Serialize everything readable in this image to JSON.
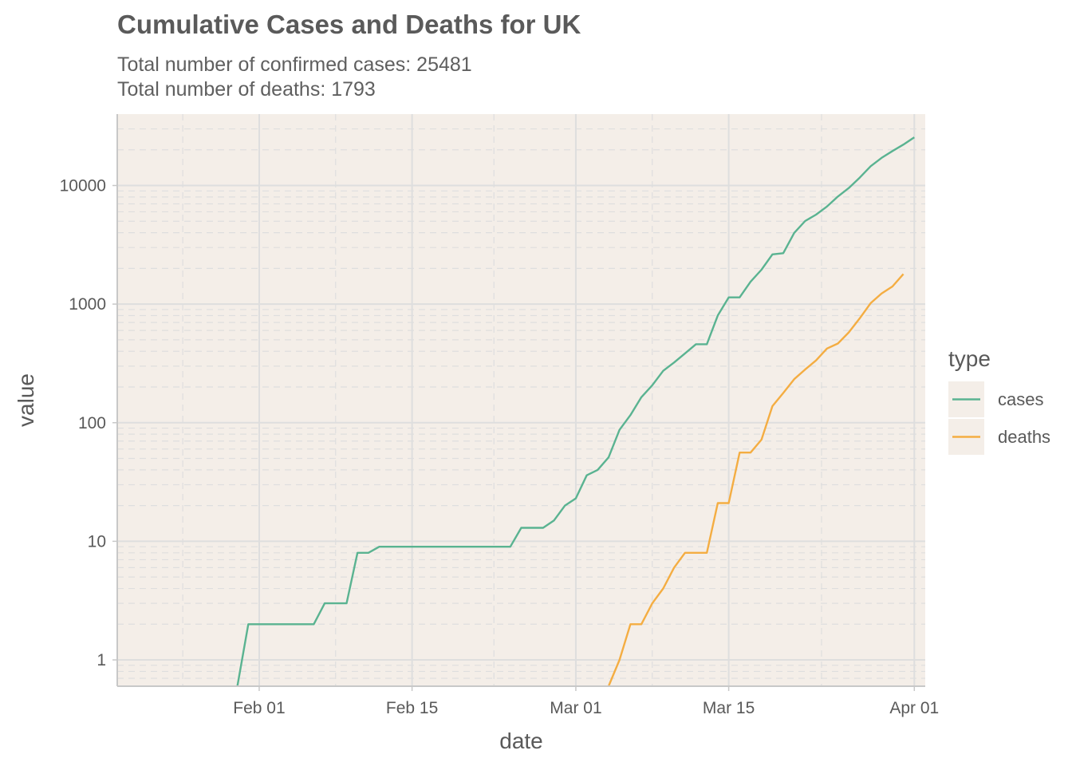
{
  "chart_data": {
    "type": "line",
    "title": "Cumulative Cases and Deaths for UK",
    "subtitle": [
      "Total number of confirmed cases: 25481",
      "Total number of deaths: 1793"
    ],
    "xlabel": "date",
    "ylabel": "value",
    "y_scale": "log10",
    "ylim": [
      0.6,
      40000
    ],
    "xlim": [
      "2020-01-19",
      "2020-04-02"
    ],
    "x_ticks": [
      {
        "date": "2020-02-01",
        "label": "Feb 01"
      },
      {
        "date": "2020-02-15",
        "label": "Feb 15"
      },
      {
        "date": "2020-03-01",
        "label": "Mar 01"
      },
      {
        "date": "2020-03-15",
        "label": "Mar 15"
      },
      {
        "date": "2020-04-01",
        "label": "Apr 01"
      }
    ],
    "y_ticks": [
      {
        "value": 1,
        "label": "1"
      },
      {
        "value": 10,
        "label": "10"
      },
      {
        "value": 100,
        "label": "100"
      },
      {
        "value": 1000,
        "label": "1000"
      },
      {
        "value": 10000,
        "label": "10000"
      }
    ],
    "legend": {
      "title": "type",
      "position": "right"
    },
    "grid": true,
    "colors": {
      "panel": "#f4eee8",
      "grid": "#dedede",
      "axis": "#c8c8c8",
      "text": "#595959",
      "cases": "#5ab391",
      "deaths": "#f4ad42"
    },
    "series": [
      {
        "name": "cases",
        "color": "#5ab391",
        "points": [
          [
            "2020-01-30",
            0.6
          ],
          [
            "2020-01-31",
            2
          ],
          [
            "2020-02-06",
            2
          ],
          [
            "2020-02-07",
            3
          ],
          [
            "2020-02-09",
            3
          ],
          [
            "2020-02-10",
            8
          ],
          [
            "2020-02-11",
            8
          ],
          [
            "2020-02-12",
            9
          ],
          [
            "2020-02-24",
            9
          ],
          [
            "2020-02-25",
            13
          ],
          [
            "2020-02-27",
            13
          ],
          [
            "2020-02-28",
            15
          ],
          [
            "2020-02-29",
            20
          ],
          [
            "2020-03-01",
            23
          ],
          [
            "2020-03-02",
            36
          ],
          [
            "2020-03-03",
            40
          ],
          [
            "2020-03-04",
            51
          ],
          [
            "2020-03-05",
            87
          ],
          [
            "2020-03-06",
            116
          ],
          [
            "2020-03-07",
            164
          ],
          [
            "2020-03-08",
            207
          ],
          [
            "2020-03-09",
            274
          ],
          [
            "2020-03-10",
            322
          ],
          [
            "2020-03-11",
            384
          ],
          [
            "2020-03-12",
            459
          ],
          [
            "2020-03-13",
            459
          ],
          [
            "2020-03-14",
            802
          ],
          [
            "2020-03-15",
            1140
          ],
          [
            "2020-03-16",
            1140
          ],
          [
            "2020-03-17",
            1543
          ],
          [
            "2020-03-18",
            1950
          ],
          [
            "2020-03-19",
            2626
          ],
          [
            "2020-03-20",
            2689
          ],
          [
            "2020-03-21",
            3983
          ],
          [
            "2020-03-22",
            5018
          ],
          [
            "2020-03-23",
            5683
          ],
          [
            "2020-03-24",
            6650
          ],
          [
            "2020-03-25",
            8077
          ],
          [
            "2020-03-26",
            9529
          ],
          [
            "2020-03-27",
            11658
          ],
          [
            "2020-03-28",
            14543
          ],
          [
            "2020-03-29",
            17089
          ],
          [
            "2020-03-30",
            19522
          ],
          [
            "2020-03-31",
            22141
          ],
          [
            "2020-04-01",
            25481
          ]
        ]
      },
      {
        "name": "deaths",
        "color": "#f4ad42",
        "points": [
          [
            "2020-03-04",
            0.6
          ],
          [
            "2020-03-05",
            1
          ],
          [
            "2020-03-06",
            2
          ],
          [
            "2020-03-07",
            2
          ],
          [
            "2020-03-08",
            3
          ],
          [
            "2020-03-09",
            4
          ],
          [
            "2020-03-10",
            6
          ],
          [
            "2020-03-11",
            8
          ],
          [
            "2020-03-12",
            8
          ],
          [
            "2020-03-13",
            8
          ],
          [
            "2020-03-14",
            21
          ],
          [
            "2020-03-15",
            21
          ],
          [
            "2020-03-16",
            56
          ],
          [
            "2020-03-17",
            56
          ],
          [
            "2020-03-18",
            72
          ],
          [
            "2020-03-19",
            138
          ],
          [
            "2020-03-20",
            178
          ],
          [
            "2020-03-21",
            233
          ],
          [
            "2020-03-22",
            281
          ],
          [
            "2020-03-23",
            335
          ],
          [
            "2020-03-24",
            422
          ],
          [
            "2020-03-25",
            465
          ],
          [
            "2020-03-26",
            578
          ],
          [
            "2020-03-27",
            759
          ],
          [
            "2020-03-28",
            1019
          ],
          [
            "2020-03-29",
            1228
          ],
          [
            "2020-03-30",
            1408
          ],
          [
            "2020-03-31",
            1793
          ]
        ]
      }
    ]
  }
}
